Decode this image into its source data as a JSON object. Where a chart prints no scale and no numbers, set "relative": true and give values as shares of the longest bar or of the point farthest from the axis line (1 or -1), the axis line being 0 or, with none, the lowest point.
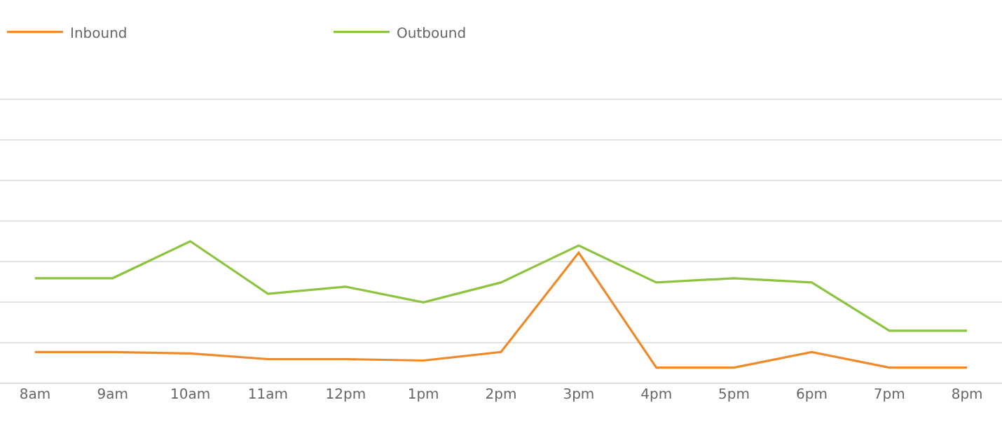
{
  "chart_data": {
    "type": "line",
    "relative": true,
    "grid": "y",
    "legend": "top left",
    "marker": "none",
    "line_style": "solid",
    "categories": [
      "8am",
      "9am",
      "10am",
      "11am",
      "12pm",
      "1pm",
      "2pm",
      "3pm",
      "4pm",
      "5pm",
      "6pm",
      "7pm",
      "8pm"
    ],
    "series": [
      {
        "name": "Inbound",
        "color": "#f0892a",
        "values": [
          0.22,
          0.22,
          0.21,
          0.17,
          0.17,
          0.16,
          0.22,
          0.92,
          0.11,
          0.11,
          0.22,
          0.11,
          0.11
        ]
      },
      {
        "name": "Outbound",
        "color": "#8cc43f",
        "values": [
          0.74,
          0.74,
          1,
          0.63,
          0.68,
          0.57,
          0.71,
          0.97,
          0.71,
          0.74,
          0.71,
          0.37,
          0.37
        ]
      }
    ]
  }
}
